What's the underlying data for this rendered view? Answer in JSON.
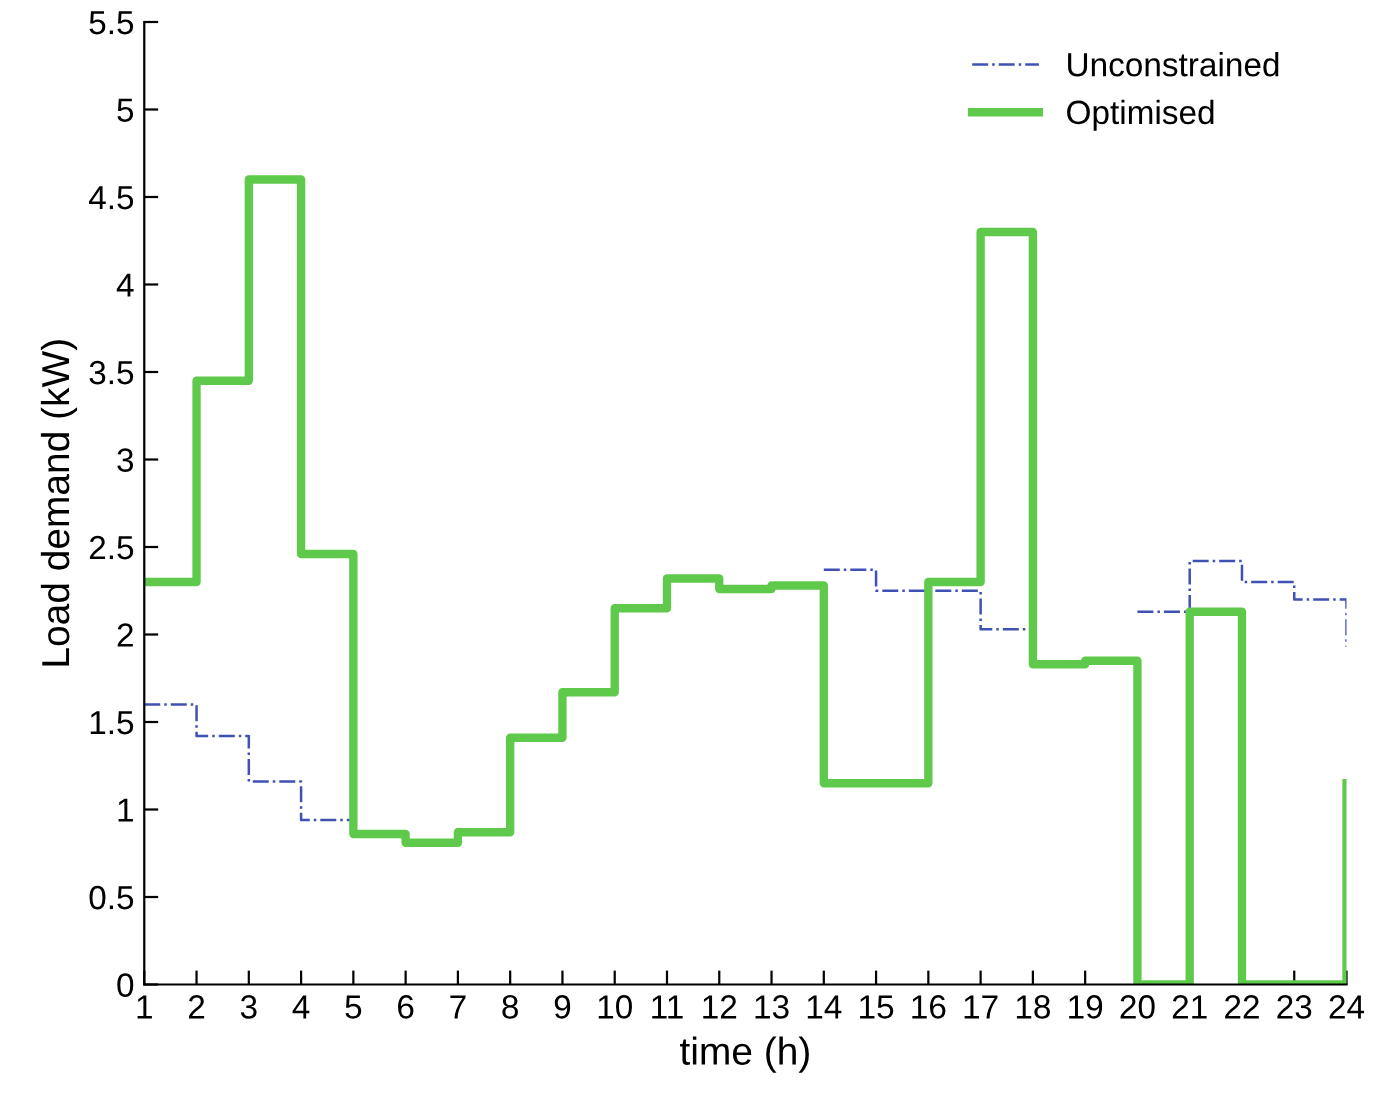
{
  "chart_data": {
    "type": "step",
    "xlabel": "time (h)",
    "ylabel": "Load demand (kW)",
    "x": [
      1,
      2,
      3,
      4,
      5,
      6,
      7,
      8,
      9,
      10,
      11,
      12,
      13,
      14,
      15,
      16,
      17,
      18,
      19,
      20,
      21,
      22,
      23,
      24
    ],
    "series": [
      {
        "name": "Unconstrained",
        "color": "#3f51b5",
        "line_style": "dashdot",
        "values": [
          1.6,
          1.42,
          1.16,
          0.94,
          null,
          null,
          null,
          null,
          null,
          null,
          null,
          null,
          null,
          2.37,
          2.25,
          2.25,
          2.03,
          null,
          null,
          2.13,
          2.42,
          2.3,
          2.2,
          1.93
        ]
      },
      {
        "name": "Optimised",
        "color": "#5ec94a",
        "line_style": "solid",
        "values": [
          2.3,
          3.45,
          4.6,
          2.46,
          0.86,
          0.81,
          0.87,
          1.41,
          1.67,
          2.15,
          2.32,
          2.26,
          2.28,
          1.15,
          1.15,
          2.3,
          4.3,
          1.83,
          1.85,
          0,
          2.13,
          0,
          0,
          1.15
        ]
      }
    ],
    "xlim": [
      1,
      24
    ],
    "xticks": [
      1,
      2,
      3,
      4,
      5,
      6,
      7,
      8,
      9,
      10,
      11,
      12,
      13,
      14,
      15,
      16,
      17,
      18,
      19,
      20,
      21,
      22,
      23,
      24
    ],
    "ylim": [
      0,
      5.5
    ],
    "yticks": [
      0,
      0.5,
      1,
      1.5,
      2,
      2.5,
      3,
      3.5,
      4,
      4.5,
      5,
      5.5
    ],
    "grid": false,
    "legend": "top right"
  }
}
